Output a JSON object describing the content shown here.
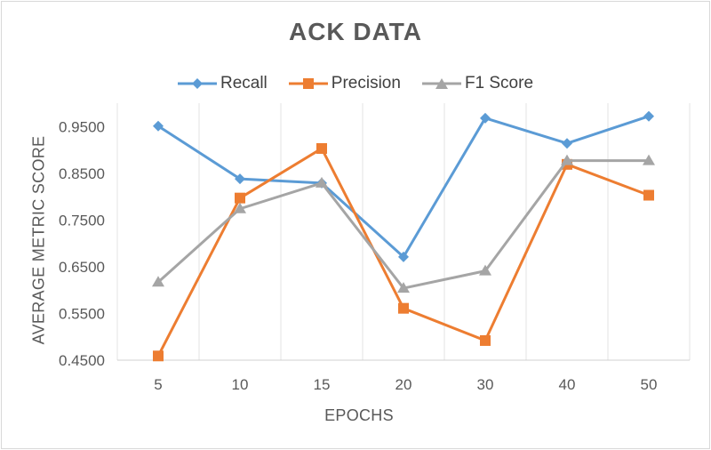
{
  "chart_data": {
    "type": "line",
    "title": "ACK DATA",
    "xlabel": "EPOCHS",
    "ylabel": "AVERAGE METRIC SCORE",
    "categories": [
      "5",
      "10",
      "15",
      "20",
      "30",
      "40",
      "50"
    ],
    "ylim": [
      0.45,
      1.0
    ],
    "yticks": [
      0.45,
      0.55,
      0.65,
      0.75,
      0.85,
      0.95
    ],
    "ytick_labels": [
      "0.4500",
      "0.5500",
      "0.6500",
      "0.7500",
      "0.8500",
      "0.9500"
    ],
    "grid": "vertical",
    "legend_position": "top",
    "series": [
      {
        "name": "Recall",
        "color": "#5b9bd5",
        "marker": "diamond",
        "values": [
          0.951,
          0.838,
          0.829,
          0.671,
          0.968,
          0.914,
          0.972
        ]
      },
      {
        "name": "Precision",
        "color": "#ed7d31",
        "marker": "square",
        "values": [
          0.459,
          0.797,
          0.903,
          0.561,
          0.492,
          0.869,
          0.803
        ]
      },
      {
        "name": "F1 Score",
        "color": "#a5a5a5",
        "marker": "triangle",
        "values": [
          0.617,
          0.774,
          0.829,
          0.604,
          0.641,
          0.877,
          0.877
        ]
      }
    ]
  }
}
